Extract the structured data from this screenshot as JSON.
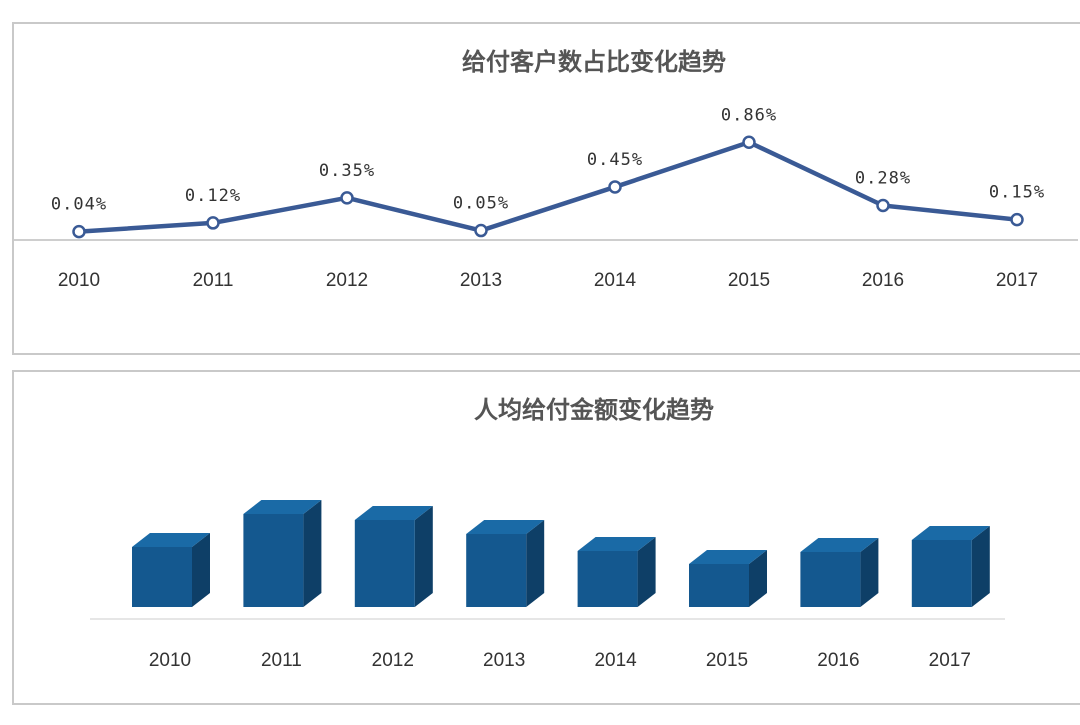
{
  "colors": {
    "line": "#3a5a95",
    "bar_front": "#14588f",
    "bar_top": "#1a6aa6",
    "bar_side": "#0e3f67"
  },
  "chart_data": [
    {
      "type": "line",
      "title": "给付客户数占比变化趋势",
      "categories": [
        "2010",
        "2011",
        "2012",
        "2013",
        "2014",
        "2015",
        "2016",
        "2017"
      ],
      "values": [
        0.04,
        0.12,
        0.35,
        0.05,
        0.45,
        0.86,
        0.28,
        0.15
      ],
      "labels": [
        "0.04%",
        "0.12%",
        "0.35%",
        "0.05%",
        "0.45%",
        "0.86%",
        "0.28%",
        "0.15%"
      ],
      "unit": "%",
      "grid": false
    },
    {
      "type": "bar",
      "title": "人均给付金额变化趋势",
      "categories": [
        "2010",
        "2011",
        "2012",
        "2013",
        "2014",
        "2015",
        "2016",
        "2017"
      ],
      "values": [
        60,
        93,
        87,
        73,
        56,
        43,
        55,
        67
      ],
      "ylim": [
        0,
        100
      ],
      "grid": false
    }
  ]
}
